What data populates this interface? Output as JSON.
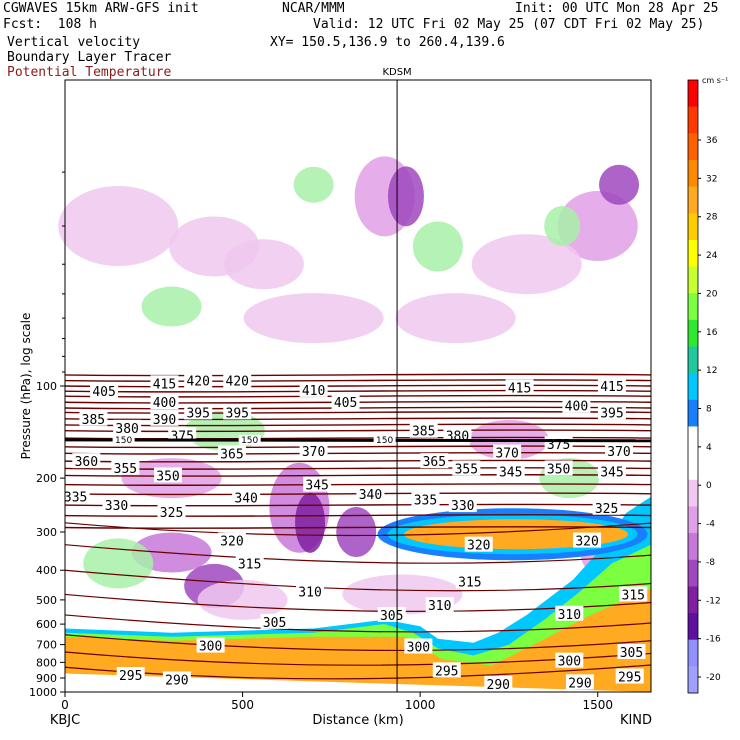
{
  "header": {
    "title_left": "CGWAVES 15km ARW-GFS init",
    "title_center": "NCAR/MMM",
    "init": "Init: 00 UTC Mon 28 Apr 25",
    "fcst": "Fcst:  108 h",
    "valid": "Valid: 12 UTC Fri 02 May 25 (07 CDT Fri 02 May 25)",
    "field1": "Vertical velocity",
    "field2": "Boundary Layer Tracer",
    "field3": "Potential Temperature",
    "xy": "XY= 150.5,136.9 to 260.4,139.6"
  },
  "colors": {
    "theta": "#6b0000",
    "tracer": "#000000",
    "station_line": "#000000"
  },
  "chart_data": {
    "type": "heatmap",
    "xlabel": "Distance (km)",
    "ylabel": "Pressure (hPa), log scale",
    "xlim": [
      0,
      1650
    ],
    "ylim": [
      1000,
      10
    ],
    "yscale": "log",
    "x_ticks": [
      0,
      500,
      1000,
      1500
    ],
    "y_ticks": [
      100,
      200,
      300,
      400,
      500,
      600,
      700,
      800,
      900,
      1000
    ],
    "x_endpoints": {
      "left": "KBJC",
      "right": "KIND"
    },
    "station": {
      "name": "KDSM",
      "x": 935
    },
    "tracer_label": "150",
    "colorbar": {
      "unit": "cm s⁻¹",
      "labels": [
        "36",
        "32",
        "28",
        "24",
        "20",
        "16",
        "12",
        "8",
        "4",
        "0",
        "-4",
        "-8",
        "-12",
        "-16",
        "-20"
      ],
      "colors": [
        "#ff0000",
        "#ff3a00",
        "#ff6000",
        "#ff8a00",
        "#ffaa20",
        "#ffcc00",
        "#ffff00",
        "#c8ff30",
        "#7cff40",
        "#30e830",
        "#20c8a0",
        "#00c8ff",
        "#1880ff",
        "#ffffff",
        "#ffffff",
        "#f0c8f0",
        "#e0a0e8",
        "#c878d8",
        "#a048c0",
        "#8020a0",
        "#6010a0",
        "#9090ff",
        "#a0a0ff"
      ]
    },
    "theta_labels": [
      {
        "v": "415",
        "x": 280,
        "p": 98
      },
      {
        "v": "420",
        "x": 375,
        "p": 96
      },
      {
        "v": "420",
        "x": 485,
        "p": 96
      },
      {
        "v": "410",
        "x": 700,
        "p": 103
      },
      {
        "v": "415",
        "x": 1280,
        "p": 101
      },
      {
        "v": "415",
        "x": 1540,
        "p": 100
      },
      {
        "v": "405",
        "x": 110,
        "p": 104
      },
      {
        "v": "400",
        "x": 280,
        "p": 113
      },
      {
        "v": "405",
        "x": 790,
        "p": 113
      },
      {
        "v": "400",
        "x": 1440,
        "p": 116
      },
      {
        "v": "390",
        "x": 280,
        "p": 128
      },
      {
        "v": "395",
        "x": 375,
        "p": 122
      },
      {
        "v": "395",
        "x": 485,
        "p": 122
      },
      {
        "v": "395",
        "x": 1540,
        "p": 122
      },
      {
        "v": "385",
        "x": 80,
        "p": 128
      },
      {
        "v": "380",
        "x": 175,
        "p": 137
      },
      {
        "v": "375",
        "x": 330,
        "p": 145
      },
      {
        "v": "385",
        "x": 1010,
        "p": 140
      },
      {
        "v": "380",
        "x": 1105,
        "p": 145
      },
      {
        "v": "360",
        "x": 60,
        "p": 176
      },
      {
        "v": "355",
        "x": 170,
        "p": 185
      },
      {
        "v": "350",
        "x": 290,
        "p": 196
      },
      {
        "v": "365",
        "x": 470,
        "p": 166
      },
      {
        "v": "370",
        "x": 700,
        "p": 163
      },
      {
        "v": "365",
        "x": 1040,
        "p": 176
      },
      {
        "v": "355",
        "x": 1130,
        "p": 186
      },
      {
        "v": "370",
        "x": 1245,
        "p": 165
      },
      {
        "v": "375",
        "x": 1390,
        "p": 155
      },
      {
        "v": "370",
        "x": 1560,
        "p": 163
      },
      {
        "v": "345",
        "x": 1255,
        "p": 190
      },
      {
        "v": "350",
        "x": 1390,
        "p": 186
      },
      {
        "v": "345",
        "x": 1540,
        "p": 190
      },
      {
        "v": "335",
        "x": 30,
        "p": 230
      },
      {
        "v": "330",
        "x": 145,
        "p": 245
      },
      {
        "v": "325",
        "x": 300,
        "p": 258
      },
      {
        "v": "340",
        "x": 510,
        "p": 231
      },
      {
        "v": "345",
        "x": 710,
        "p": 210
      },
      {
        "v": "340",
        "x": 860,
        "p": 225
      },
      {
        "v": "335",
        "x": 1015,
        "p": 235
      },
      {
        "v": "330",
        "x": 1120,
        "p": 245
      },
      {
        "v": "325",
        "x": 1525,
        "p": 250
      },
      {
        "v": "320",
        "x": 470,
        "p": 320
      },
      {
        "v": "320",
        "x": 1165,
        "p": 330
      },
      {
        "v": "320",
        "x": 1470,
        "p": 320
      },
      {
        "v": "315",
        "x": 520,
        "p": 380
      },
      {
        "v": "315",
        "x": 1140,
        "p": 435
      },
      {
        "v": "315",
        "x": 1600,
        "p": 480
      },
      {
        "v": "310",
        "x": 690,
        "p": 470
      },
      {
        "v": "310",
        "x": 1055,
        "p": 520
      },
      {
        "v": "310",
        "x": 1420,
        "p": 555
      },
      {
        "v": "305",
        "x": 590,
        "p": 590
      },
      {
        "v": "305",
        "x": 920,
        "p": 560
      },
      {
        "v": "305",
        "x": 1595,
        "p": 740
      },
      {
        "v": "300",
        "x": 410,
        "p": 705
      },
      {
        "v": "300",
        "x": 995,
        "p": 710
      },
      {
        "v": "300",
        "x": 1420,
        "p": 790
      },
      {
        "v": "295",
        "x": 185,
        "p": 880
      },
      {
        "v": "295",
        "x": 1075,
        "p": 850
      },
      {
        "v": "295",
        "x": 1590,
        "p": 890
      },
      {
        "v": "290",
        "x": 315,
        "p": 910
      },
      {
        "v": "290",
        "x": 1220,
        "p": 940
      },
      {
        "v": "290",
        "x": 1450,
        "p": 930
      }
    ],
    "tracer_label_positions": [
      {
        "x": 165,
        "p": 150
      },
      {
        "x": 520,
        "p": 150
      },
      {
        "x": 900,
        "p": 150
      }
    ]
  }
}
